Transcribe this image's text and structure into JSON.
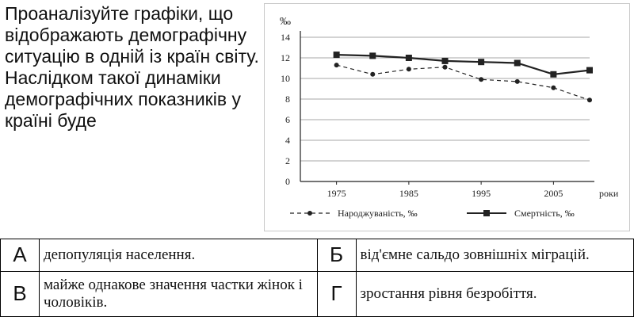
{
  "question": "Проаналізуйте графіки, що відображають демографічну ситуацію в одній із країн світу. Наслідком такої динаміки демографічних показників у країні буде",
  "chart_data": {
    "type": "line",
    "ylabel": "‰",
    "xlabel": "роки",
    "ylim": [
      0,
      14
    ],
    "yticks": [
      0,
      2,
      4,
      6,
      8,
      10,
      12,
      14
    ],
    "xlim": [
      1970,
      2010
    ],
    "xticks": [
      1975,
      1985,
      1995,
      2005
    ],
    "grid": true,
    "legend": "bottom",
    "series": [
      {
        "name": "Народжуваність, ‰",
        "style": "dashed",
        "marker": "circle",
        "x": [
          1975,
          1980,
          1985,
          1990,
          1995,
          2000,
          2005,
          2010
        ],
        "values": [
          11.3,
          10.4,
          10.9,
          11.1,
          9.9,
          9.7,
          9.1,
          7.9
        ]
      },
      {
        "name": "Смертність, ‰",
        "style": "solid",
        "marker": "square",
        "x": [
          1975,
          1980,
          1985,
          1990,
          1995,
          2000,
          2005,
          2010
        ],
        "values": [
          12.3,
          12.2,
          12.0,
          11.7,
          11.6,
          11.5,
          10.4,
          10.8
        ]
      }
    ]
  },
  "answers": [
    {
      "letter": "А",
      "text": "депопуляція населення."
    },
    {
      "letter": "Б",
      "text": "від'ємне сальдо зовнішніх міграцій."
    },
    {
      "letter": "В",
      "text": "майже однакове значення частки жінок і чоловіків."
    },
    {
      "letter": "Г",
      "text": "зростання рівня безробіття."
    }
  ]
}
